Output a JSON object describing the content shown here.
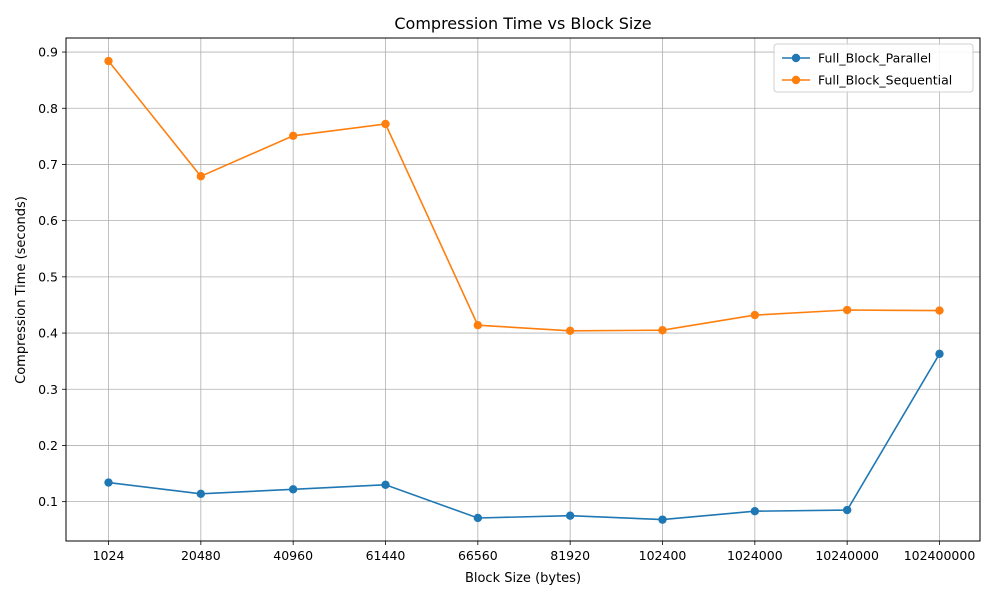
{
  "chart_data": {
    "type": "line",
    "title": "Compression Time vs Block Size",
    "xlabel": "Block Size (bytes)",
    "ylabel": "Compression Time (seconds)",
    "categories": [
      "1024",
      "20480",
      "40960",
      "61440",
      "66560",
      "81920",
      "102400",
      "1024000",
      "10240000",
      "102400000"
    ],
    "ylim": [
      0.03,
      0.925
    ],
    "yticks": [
      "0.1",
      "0.2",
      "0.3",
      "0.4",
      "0.5",
      "0.6",
      "0.7",
      "0.8",
      "0.9"
    ],
    "grid": true,
    "legend_position": "top-right",
    "series": [
      {
        "name": "Full_Block_Parallel",
        "color": "#1f77b4",
        "marker": "circle",
        "values": [
          0.134,
          0.114,
          0.122,
          0.13,
          0.071,
          0.075,
          0.068,
          0.083,
          0.085,
          0.363
        ]
      },
      {
        "name": "Full_Block_Sequential",
        "color": "#ff7f0e",
        "marker": "circle",
        "values": [
          0.884,
          0.679,
          0.751,
          0.772,
          0.414,
          0.404,
          0.405,
          0.432,
          0.441,
          0.44
        ]
      }
    ]
  }
}
